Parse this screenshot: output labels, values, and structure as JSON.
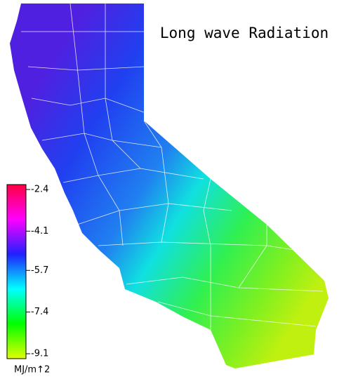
{
  "title": "Long wave Radiation",
  "legend": {
    "unit": "MJ/m↑2",
    "ticks": [
      -2.4,
      -4.1,
      -5.7,
      -7.4,
      -9.1
    ],
    "lim": [
      -2.2,
      -9.3
    ],
    "colors": [
      "#ff0040",
      "#ff00ff",
      "#2020ff",
      "#00ffff",
      "#00ff00",
      "#e0ff00"
    ]
  }
}
